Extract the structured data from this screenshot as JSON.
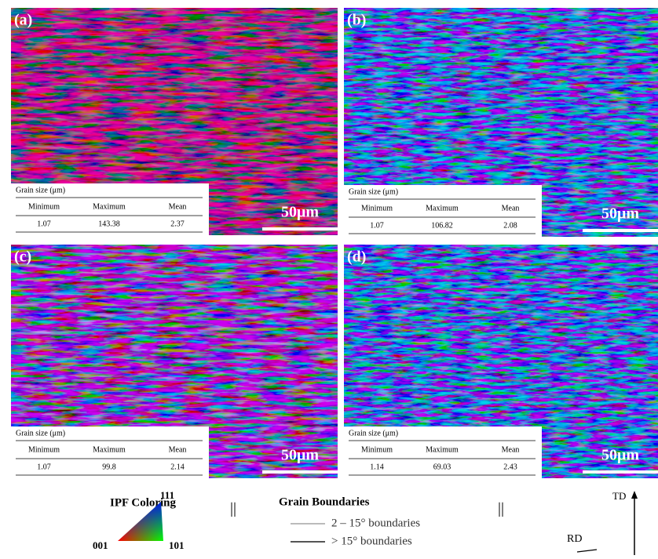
{
  "panels": [
    {
      "label": "(a)",
      "scale_bar": "50μm",
      "table": {
        "title": "Grain size (μm)",
        "headers": [
          "Minimum",
          "Maximum",
          "Mean"
        ],
        "values": [
          "1.07",
          "143.38",
          "2.37"
        ]
      }
    },
    {
      "label": "(b)",
      "scale_bar": "50μm",
      "table": {
        "title": "Grain size (μm)",
        "headers": [
          "Minimum",
          "Maximum",
          "Mean"
        ],
        "values": [
          "1.07",
          "106.82",
          "2.08"
        ]
      }
    },
    {
      "label": "(c)",
      "scale_bar": "50μm",
      "table": {
        "title": "Grain size (μm)",
        "headers": [
          "Minimum",
          "Maximum",
          "Mean"
        ],
        "values": [
          "1.07",
          "99.8",
          "2.14"
        ]
      }
    },
    {
      "label": "(d)",
      "scale_bar": "50μm",
      "table": {
        "title": "Grain size (μm)",
        "headers": [
          "Minimum",
          "Maximum",
          "Mean"
        ],
        "values": [
          "1.14",
          "69.03",
          "2.43"
        ]
      }
    }
  ],
  "legend": {
    "ipf": {
      "title": "IPF Coloring",
      "corner_top": "111",
      "corner_left": "001",
      "corner_right": "101"
    },
    "separator": "||",
    "boundaries": {
      "title": "Grain Boundaries",
      "low": "2 – 15° boundaries",
      "high": "> 15° boundaries"
    },
    "axes": {
      "td": "TD",
      "rd": "RD"
    }
  }
}
